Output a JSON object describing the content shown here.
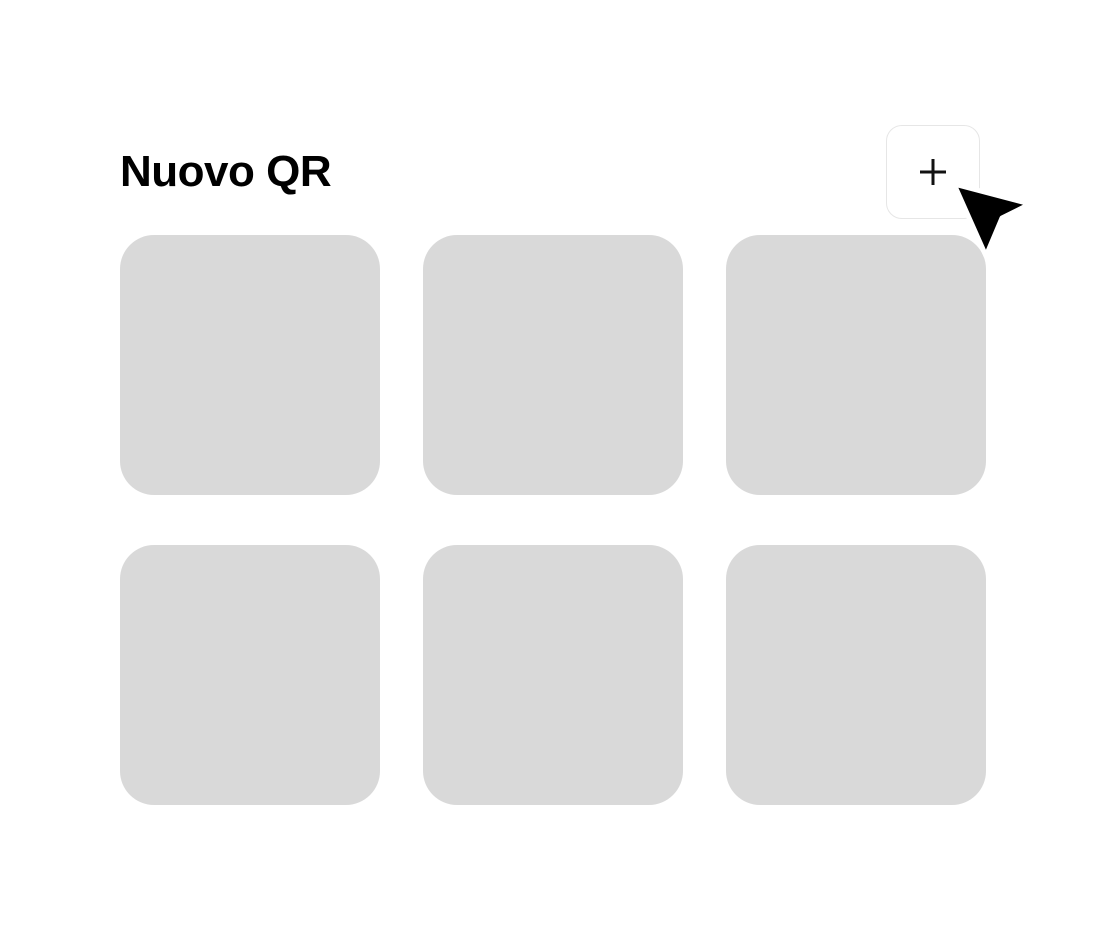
{
  "header": {
    "title": "Nuovo QR",
    "add_button_icon": "plus-icon"
  },
  "grid": {
    "tiles": [
      {
        "state": "placeholder"
      },
      {
        "state": "placeholder"
      },
      {
        "state": "placeholder"
      },
      {
        "state": "placeholder"
      },
      {
        "state": "placeholder"
      },
      {
        "state": "placeholder"
      }
    ],
    "tile_color": "#d9d9d9"
  },
  "cursor": {
    "icon": "mouse-pointer-icon"
  }
}
